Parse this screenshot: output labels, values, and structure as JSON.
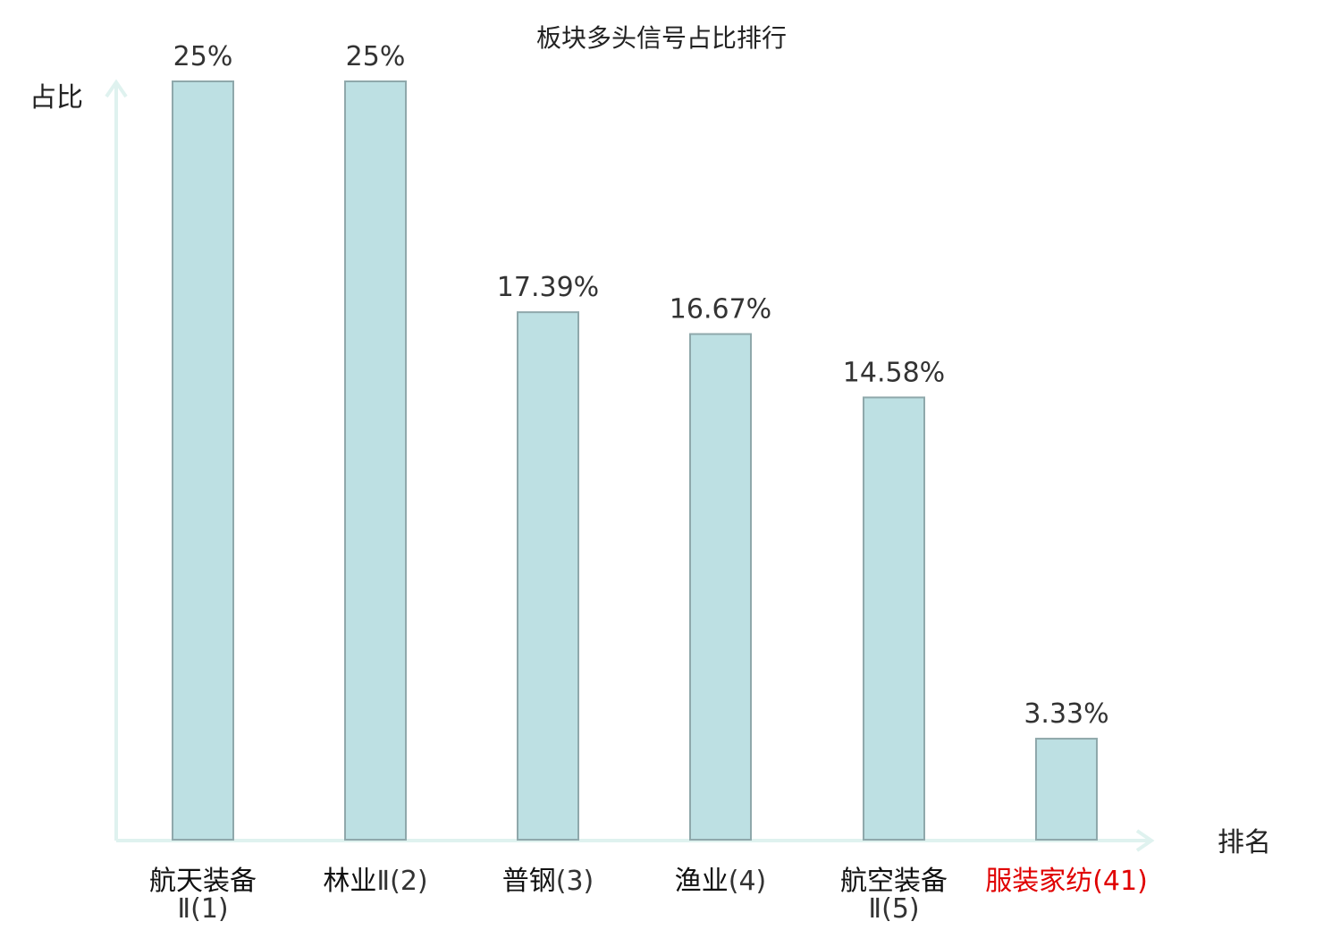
{
  "chart_data": {
    "type": "bar",
    "title": "板块多头信号占比排行",
    "ylabel": "占比",
    "xlabel": "排名",
    "categories": [
      {
        "name": "航天装备",
        "rank": "Ⅱ(1)"
      },
      {
        "name": "林业",
        "rank": "Ⅱ(2)"
      },
      {
        "name": "普钢",
        "rank": "(3)"
      },
      {
        "name": "渔业",
        "rank": "(4)"
      },
      {
        "name": "航空装备",
        "rank": "Ⅱ(5)"
      },
      {
        "name": "服装家纺",
        "rank": "(41)"
      }
    ],
    "values": [
      25,
      25,
      17.39,
      16.67,
      14.58,
      3.33
    ],
    "value_labels": [
      "25%",
      "25%",
      "17.39%",
      "16.67%",
      "14.58%",
      "3.33%"
    ],
    "highlight_index": 5,
    "ylim": [
      0,
      25
    ],
    "grid": false,
    "colors": {
      "bar_fill": "#bde0e3",
      "bar_stroke": "#8fa8ab",
      "axis": "#dff2ef",
      "label_normal_name": "#111111",
      "label_normal_rank": "#333333",
      "label_highlight": "#e00000"
    }
  }
}
